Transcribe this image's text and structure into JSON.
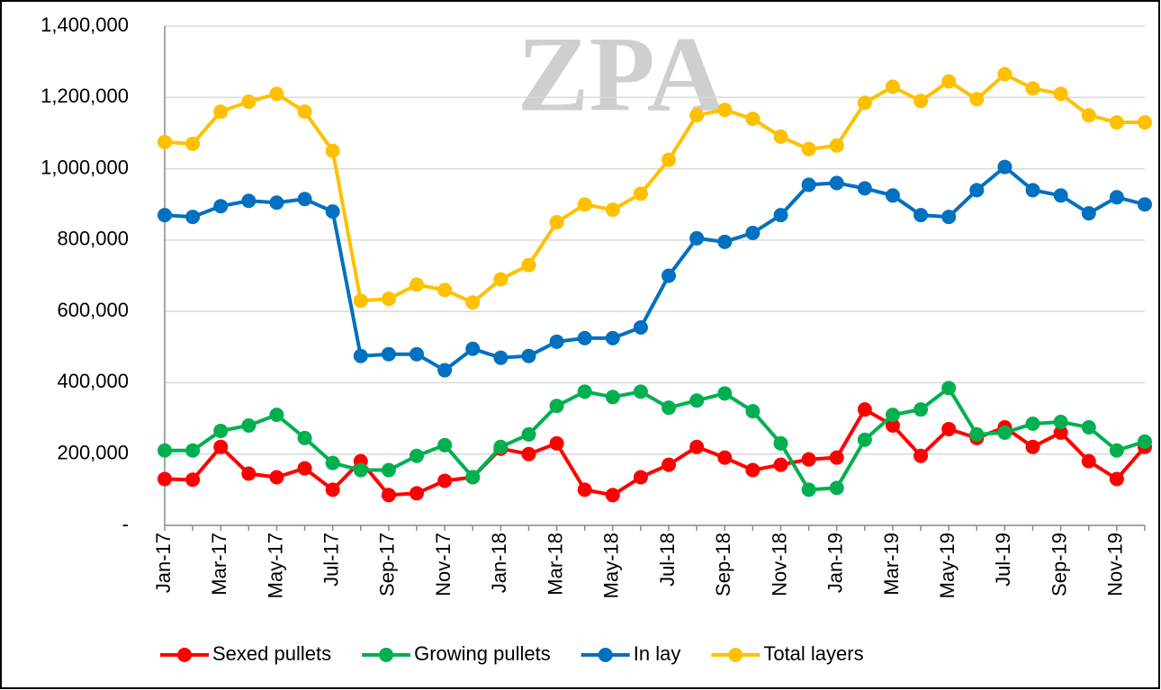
{
  "chart_data": {
    "type": "line",
    "watermark": "ZPA",
    "categories": [
      "Jan-17",
      null,
      "Mar-17",
      null,
      "May-17",
      null,
      "Jul-17",
      null,
      "Sep-17",
      null,
      "Nov-17",
      null,
      "Jan-18",
      null,
      "Mar-18",
      null,
      "May-18",
      null,
      "Jul-18",
      null,
      "Sep-18",
      null,
      "Nov-18",
      null,
      "Jan-19",
      null,
      "Mar-19",
      null,
      "May-19",
      null,
      "Jul-19",
      null,
      "Sep-19",
      null,
      "Nov-19",
      null
    ],
    "series": [
      {
        "name": "Sexed pullets",
        "color": "#ff0000",
        "values": [
          130000,
          128000,
          220000,
          145000,
          135000,
          160000,
          100000,
          180000,
          85000,
          90000,
          125000,
          135000,
          215000,
          200000,
          230000,
          100000,
          85000,
          135000,
          170000,
          220000,
          190000,
          155000,
          170000,
          185000,
          190000,
          325000,
          280000,
          195000,
          270000,
          245000,
          275000,
          220000,
          260000,
          180000,
          130000,
          220000
        ]
      },
      {
        "name": "Growing pullets",
        "color": "#00b050",
        "values": [
          210000,
          210000,
          265000,
          280000,
          310000,
          245000,
          175000,
          155000,
          155000,
          195000,
          225000,
          135000,
          220000,
          255000,
          335000,
          375000,
          360000,
          375000,
          330000,
          350000,
          370000,
          320000,
          230000,
          100000,
          105000,
          240000,
          310000,
          325000,
          385000,
          255000,
          260000,
          285000,
          290000,
          275000,
          210000,
          235000
        ]
      },
      {
        "name": "In lay",
        "color": "#0070c0",
        "values": [
          870000,
          865000,
          895000,
          910000,
          905000,
          915000,
          880000,
          475000,
          480000,
          480000,
          435000,
          495000,
          470000,
          475000,
          515000,
          525000,
          525000,
          555000,
          700000,
          805000,
          795000,
          820000,
          870000,
          955000,
          960000,
          945000,
          925000,
          870000,
          865000,
          940000,
          1005000,
          940000,
          925000,
          875000,
          920000,
          900000
        ]
      },
      {
        "name": "Total layers",
        "color": "#ffc000",
        "values": [
          1075000,
          1070000,
          1160000,
          1188000,
          1210000,
          1160000,
          1050000,
          630000,
          635000,
          675000,
          660000,
          625000,
          690000,
          730000,
          850000,
          900000,
          885000,
          930000,
          1025000,
          1150000,
          1165000,
          1140000,
          1090000,
          1055000,
          1065000,
          1185000,
          1230000,
          1190000,
          1245000,
          1195000,
          1265000,
          1225000,
          1210000,
          1150000,
          1130000,
          1130000
        ]
      }
    ],
    "ylim": [
      0,
      1400000
    ],
    "yticks": [
      {
        "value": 0,
        "label": "-"
      },
      {
        "value": 200000,
        "label": "200,000"
      },
      {
        "value": 400000,
        "label": "400,000"
      },
      {
        "value": 600000,
        "label": "600,000"
      },
      {
        "value": 800000,
        "label": "800,000"
      },
      {
        "value": 1000000,
        "label": "1,000,000"
      },
      {
        "value": 1200000,
        "label": "1,200,000"
      },
      {
        "value": 1400000,
        "label": "1,400,000"
      }
    ],
    "grid": true,
    "legend": "bottom"
  }
}
